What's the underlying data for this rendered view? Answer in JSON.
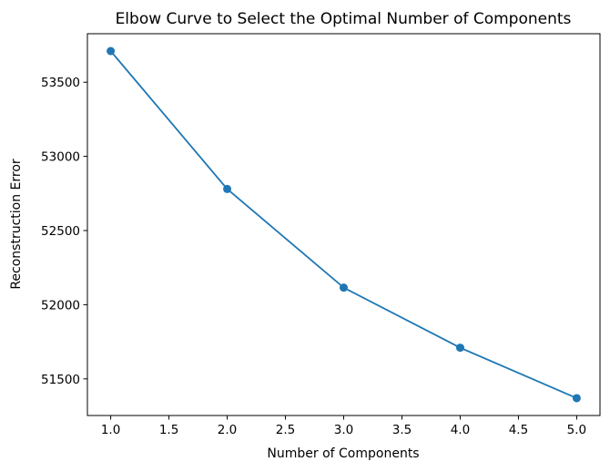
{
  "chart_data": {
    "type": "line",
    "title": "Elbow Curve to Select the Optimal Number of Components",
    "xlabel": "Number of Components",
    "ylabel": "Reconstruction Error",
    "x": [
      1,
      2,
      3,
      4,
      5
    ],
    "series": [
      {
        "values": [
          53710,
          52780,
          52115,
          51710,
          51370
        ]
      }
    ],
    "xticks": [
      1.0,
      1.5,
      2.0,
      2.5,
      3.0,
      3.5,
      4.0,
      4.5,
      5.0
    ],
    "xtick_labels": [
      "1.0",
      "1.5",
      "2.0",
      "2.5",
      "3.0",
      "3.5",
      "4.0",
      "4.5",
      "5.0"
    ],
    "yticks": [
      51500,
      52000,
      52500,
      53000,
      53500
    ],
    "ytick_labels": [
      "51500",
      "52000",
      "52500",
      "53000",
      "53500"
    ],
    "xlim": [
      0.8,
      5.2
    ],
    "ylim": [
      51253,
      53827
    ],
    "grid": false,
    "marker": "circle",
    "line_color": "#1f77b4"
  }
}
